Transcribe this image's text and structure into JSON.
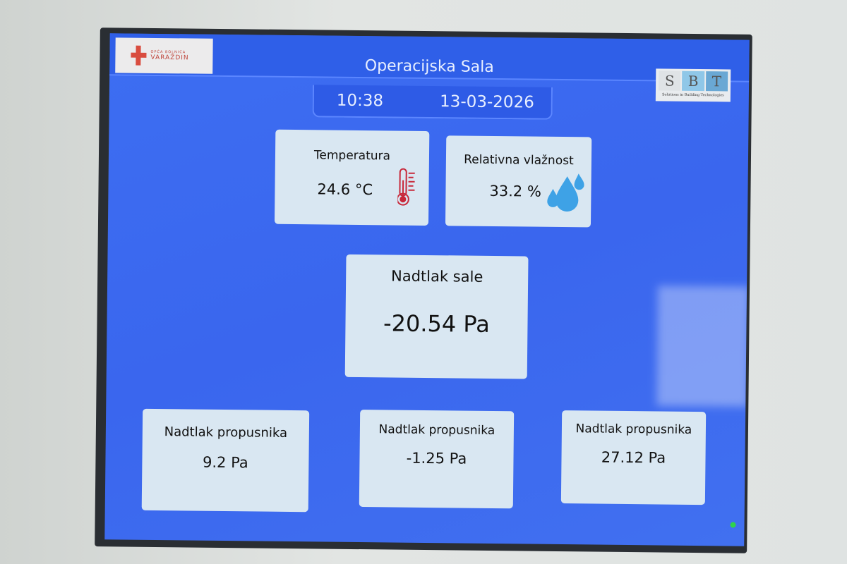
{
  "header": {
    "title": "Operacijska Sala",
    "time": "10:38",
    "date": "13-03-2026",
    "logo_left": {
      "small": "OPĆA BOLNICA",
      "big": "VARAŽDIN"
    },
    "logo_right": {
      "letters": [
        "S",
        "B",
        "T"
      ],
      "tagline": "Solutions in Building Technologies"
    }
  },
  "temperature": {
    "label": "Temperatura",
    "value": "24.6 °C",
    "icon": "thermometer-icon",
    "icon_color": "#c8283a"
  },
  "humidity": {
    "label": "Relativna vlažnost",
    "value": "33.2 %",
    "icon": "water-drops-icon",
    "icon_color": "#3ea2e6"
  },
  "room_pressure": {
    "label": "Nadtlak sale",
    "value": "-20.54 Pa"
  },
  "airlocks": [
    {
      "label": "Nadtlak propusnika",
      "value": "9.2 Pa"
    },
    {
      "label": "Nadtlak propusnika",
      "value": "-1.25 Pa"
    },
    {
      "label": "Nadtlak propusnika",
      "value": "27.12 Pa"
    }
  ],
  "colors": {
    "screen_blue": "#3a6ff0",
    "card": "#d9e7f2",
    "status_led": "#2fd34a"
  }
}
